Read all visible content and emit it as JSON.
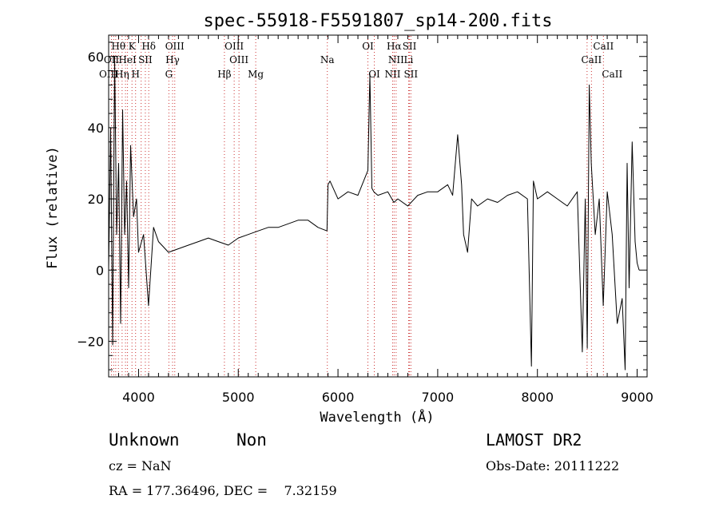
{
  "chart_data": {
    "type": "line",
    "title": "spec-55918-F5591807_sp14-200.fits",
    "xlabel": "Wavelength (Å)",
    "ylabel": "Flux (relative)",
    "xlim": [
      3700,
      9100
    ],
    "ylim": [
      -30,
      66
    ],
    "x_ticks": [
      4000,
      5000,
      6000,
      7000,
      8000,
      9000
    ],
    "y_ticks": [
      -20,
      0,
      20,
      40,
      60
    ],
    "x_tick_labels": [
      "4000",
      "5000",
      "6000",
      "7000",
      "8000",
      "9000"
    ],
    "y_tick_labels": [
      "−20",
      "0",
      "20",
      "40",
      "60"
    ],
    "grid": false,
    "series": [
      {
        "x": [
          3700,
          3720,
          3740,
          3760,
          3780,
          3800,
          3820,
          3840,
          3860,
          3880,
          3900,
          3920,
          3950,
          3980,
          4000,
          4050,
          4100,
          4150,
          4200,
          4300,
          4400,
          4500,
          4600,
          4700,
          4800,
          4900,
          5000,
          5100,
          5200,
          5300,
          5400,
          5500,
          5600,
          5700,
          5800,
          5890,
          5900,
          5920,
          6000,
          6100,
          6200,
          6300,
          6320,
          6340,
          6360,
          6400,
          6500,
          6560,
          6600,
          6700,
          6800,
          6900,
          7000,
          7100,
          7150,
          7200,
          7240,
          7260,
          7300,
          7340,
          7400,
          7500,
          7600,
          7700,
          7800,
          7900,
          7940,
          7960,
          8000,
          8100,
          8200,
          8300,
          8400,
          8450,
          8480,
          8500,
          8520,
          8540,
          8580,
          8620,
          8660,
          8700,
          8750,
          8800,
          8850,
          8880,
          8900,
          8920,
          8950,
          8980,
          9000,
          9020
        ],
        "y": [
          0,
          40,
          -21,
          60,
          10,
          30,
          -15,
          45,
          10,
          25,
          -5,
          35,
          15,
          20,
          5,
          10,
          -10,
          12,
          8,
          5,
          6,
          7,
          8,
          9,
          8,
          7,
          9,
          10,
          11,
          12,
          12,
          13,
          14,
          14,
          12,
          11,
          24,
          25,
          20,
          22,
          21,
          28,
          55,
          23,
          22,
          21,
          22,
          19,
          20,
          18,
          21,
          22,
          22,
          24,
          21,
          38,
          24,
          10,
          5,
          20,
          18,
          20,
          19,
          21,
          22,
          20,
          -27,
          25,
          20,
          22,
          20,
          18,
          22,
          -23,
          20,
          -22,
          52,
          30,
          10,
          20,
          -10,
          22,
          10,
          -15,
          -8,
          -28,
          30,
          -5,
          36,
          8,
          2,
          0
        ]
      }
    ],
    "lines": [
      {
        "x": 3728,
        "top": "OII"
      },
      {
        "x": 3750,
        "top": ""
      },
      {
        "x": 3771,
        "top": ""
      },
      {
        "x": 3798,
        "top": ""
      },
      {
        "x": 3835,
        "top": ""
      },
      {
        "x": 3869,
        "top": ""
      },
      {
        "x": 3889,
        "top": ""
      },
      {
        "x": 3934,
        "top": ""
      },
      {
        "x": 3970,
        "top": ""
      },
      {
        "x": 4026,
        "top": ""
      },
      {
        "x": 4068,
        "top": ""
      },
      {
        "x": 4102,
        "top": ""
      },
      {
        "x": 4304,
        "top": ""
      },
      {
        "x": 4341,
        "top": ""
      },
      {
        "x": 4363,
        "top": ""
      },
      {
        "x": 4861,
        "top": ""
      },
      {
        "x": 4959,
        "top": ""
      },
      {
        "x": 5007,
        "top": ""
      },
      {
        "x": 5175,
        "top": ""
      },
      {
        "x": 5893,
        "top": ""
      },
      {
        "x": 6300,
        "top": ""
      },
      {
        "x": 6364,
        "top": ""
      },
      {
        "x": 6548,
        "top": ""
      },
      {
        "x": 6563,
        "top": ""
      },
      {
        "x": 6583,
        "top": ""
      },
      {
        "x": 6708,
        "top": ""
      },
      {
        "x": 6717,
        "top": ""
      },
      {
        "x": 6731,
        "top": ""
      },
      {
        "x": 8498,
        "top": ""
      },
      {
        "x": 8542,
        "top": ""
      },
      {
        "x": 8662,
        "top": ""
      }
    ],
    "line_labels": [
      {
        "text": "Hθ",
        "x": 3798,
        "row": 1
      },
      {
        "text": "K",
        "x": 3934,
        "row": 1
      },
      {
        "text": "Hδ",
        "x": 4102,
        "row": 1
      },
      {
        "text": "OIII",
        "x": 4363,
        "row": 1
      },
      {
        "text": "OIII",
        "x": 4959,
        "row": 1
      },
      {
        "text": "OI",
        "x": 6300,
        "row": 1
      },
      {
        "text": "Hα",
        "x": 6563,
        "row": 1
      },
      {
        "text": "SII",
        "x": 6717,
        "row": 1
      },
      {
        "text": "CaII",
        "x": 8662,
        "row": 1
      },
      {
        "text": "OII",
        "x": 3728,
        "row": 2
      },
      {
        "text": "HeI",
        "x": 3889,
        "row": 2
      },
      {
        "text": "SII",
        "x": 4068,
        "row": 2
      },
      {
        "text": "Hγ",
        "x": 4341,
        "row": 2
      },
      {
        "text": "OIII",
        "x": 5007,
        "row": 2
      },
      {
        "text": "Na",
        "x": 5893,
        "row": 2
      },
      {
        "text": "NII",
        "x": 6583,
        "row": 2
      },
      {
        "text": "Li",
        "x": 6708,
        "row": 2
      },
      {
        "text": "CaII",
        "x": 8542,
        "row": 2
      },
      {
        "text": "OIII",
        "x": 3700,
        "row": 3
      },
      {
        "text": "Hη",
        "x": 3835,
        "row": 3
      },
      {
        "text": "H",
        "x": 3970,
        "row": 3
      },
      {
        "text": "G",
        "x": 4304,
        "row": 3
      },
      {
        "text": "Hβ",
        "x": 4861,
        "row": 3
      },
      {
        "text": "Mg",
        "x": 5175,
        "row": 3
      },
      {
        "text": "OI",
        "x": 6364,
        "row": 3
      },
      {
        "text": "NII",
        "x": 6548,
        "row": 3
      },
      {
        "text": "SII",
        "x": 6731,
        "row": 3
      },
      {
        "text": "CaII",
        "x": 8750,
        "row": 3
      }
    ]
  },
  "info": {
    "class": "Unknown",
    "subclass": "Non",
    "survey": "LAMOST DR2",
    "cz": "cz = NaN",
    "obs_date": "Obs-Date: 20111222",
    "coords": "RA = 177.36496, DEC =    7.32159"
  }
}
